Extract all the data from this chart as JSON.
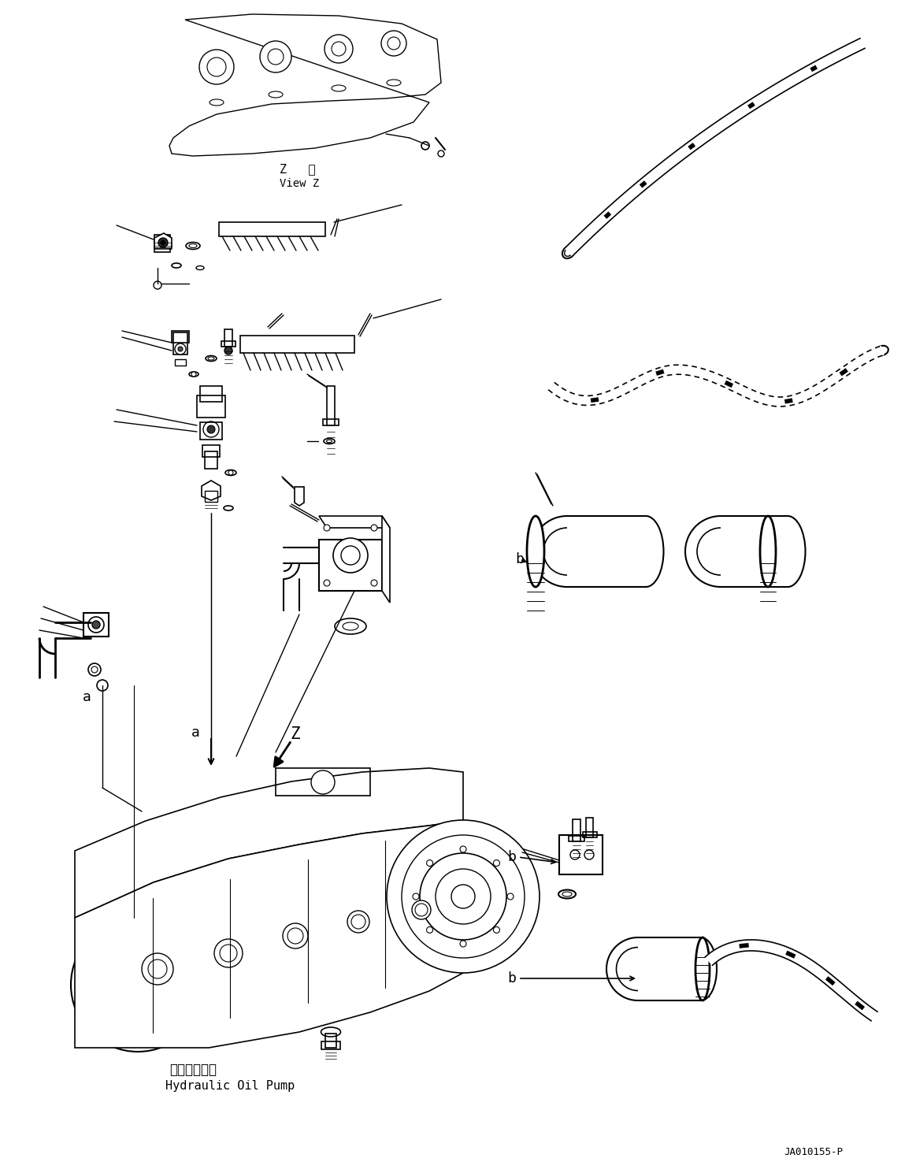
{
  "bg_color": "#ffffff",
  "line_color": "#000000",
  "title_ja": "作動油ポンプ",
  "title_en": "Hydraulic Oil Pump",
  "view_label_ja": "Z   視",
  "view_label_en": "View Z",
  "part_code": "JA010155-P",
  "label_a": "a",
  "label_b": "b",
  "label_z": "Z",
  "fig_width": 11.63,
  "fig_height": 14.89,
  "dpi": 100
}
